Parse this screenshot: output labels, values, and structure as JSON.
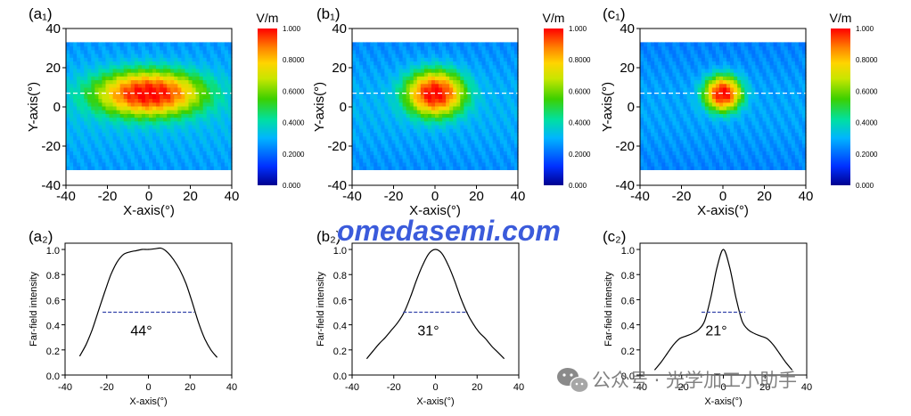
{
  "colormap": {
    "unit": "V/m",
    "stops": [
      "#00008f",
      "#0030ff",
      "#00b4ff",
      "#00e0a0",
      "#3cd000",
      "#c8e600",
      "#ffd400",
      "#ff8000",
      "#ff0000"
    ],
    "tick_labels": [
      "1.000",
      "0.8000",
      "0.6000",
      "0.4000",
      "0.2000",
      "0.000"
    ]
  },
  "heatmap_axes": {
    "xlabel": "X-axis(°)",
    "ylabel": "Y-axis(°)",
    "xticks": [
      "-40",
      "-20",
      "0",
      "20",
      "40"
    ],
    "yticks": [
      "40",
      "20",
      "0",
      "-20",
      "-40"
    ]
  },
  "profile_axes": {
    "xlabel": "X-axis(°)",
    "ylabel": "Far-field intensity",
    "xticks": [
      "-40",
      "-20",
      "0",
      "20",
      "40"
    ],
    "yticks": [
      "1.0",
      "0.8",
      "0.6",
      "0.4",
      "0.2",
      "0.0"
    ]
  },
  "panels": [
    {
      "heatmap_label": "(a₁)",
      "profile_label": "(a₂)",
      "angle_label": "44°"
    },
    {
      "heatmap_label": "(b₁)",
      "profile_label": "(b₂)",
      "angle_label": "31°"
    },
    {
      "heatmap_label": "(c₁)",
      "profile_label": "(c₂)",
      "angle_label": "21°"
    }
  ],
  "watermark": {
    "site": "omedasemi.com",
    "account": "公众号 · 光学加工小助手"
  },
  "chart_data": [
    {
      "type": "heatmap",
      "panel": "a1",
      "xlim": [
        -40,
        40
      ],
      "ylim": [
        -40,
        40
      ],
      "data_extent_y": [
        -32,
        33
      ],
      "dashed_line_y": 7,
      "colorbar_range": [
        0,
        1
      ],
      "hotspot": {
        "x": 0,
        "y": 7,
        "sigma_x": 20,
        "sigma_y": 9,
        "peak": 1.0
      },
      "background_level": 0.32
    },
    {
      "type": "heatmap",
      "panel": "b1",
      "xlim": [
        -40,
        40
      ],
      "ylim": [
        -40,
        40
      ],
      "data_extent_y": [
        -32,
        33
      ],
      "dashed_line_y": 7,
      "colorbar_range": [
        0,
        1
      ],
      "hotspot": {
        "x": 0,
        "y": 7,
        "sigma_x": 11,
        "sigma_y": 9,
        "peak": 1.0
      },
      "background_level": 0.3
    },
    {
      "type": "heatmap",
      "panel": "c1",
      "xlim": [
        -40,
        40
      ],
      "ylim": [
        -40,
        40
      ],
      "data_extent_y": [
        -32,
        33
      ],
      "dashed_line_y": 7,
      "colorbar_range": [
        0,
        1
      ],
      "hotspot": {
        "x": 0,
        "y": 7,
        "sigma_x": 7,
        "sigma_y": 7,
        "peak": 1.0
      },
      "background_level": 0.28
    },
    {
      "type": "line",
      "panel": "a2",
      "xlim": [
        -40,
        40
      ],
      "ylim": [
        0,
        1.05
      ],
      "x": [
        -33,
        -30,
        -27,
        -24,
        -21,
        -18,
        -15,
        -12,
        -9,
        -6,
        -3,
        0,
        3,
        6,
        9,
        12,
        15,
        18,
        21,
        24,
        27,
        30,
        33
      ],
      "y": [
        0.15,
        0.24,
        0.36,
        0.51,
        0.66,
        0.8,
        0.9,
        0.96,
        0.98,
        0.99,
        1.0,
        1.0,
        1.005,
        1.01,
        0.98,
        0.92,
        0.84,
        0.73,
        0.58,
        0.42,
        0.29,
        0.2,
        0.14
      ],
      "fwhm_level": 0.5,
      "fwhm_x": [
        -22,
        22
      ]
    },
    {
      "type": "line",
      "panel": "b2",
      "xlim": [
        -40,
        40
      ],
      "ylim": [
        0,
        1.05
      ],
      "x": [
        -33,
        -30,
        -27,
        -24,
        -21,
        -18,
        -15,
        -12,
        -9,
        -6,
        -3,
        0,
        3,
        6,
        9,
        12,
        15,
        18,
        21,
        24,
        27,
        30,
        33
      ],
      "y": [
        0.13,
        0.19,
        0.25,
        0.3,
        0.36,
        0.42,
        0.5,
        0.62,
        0.76,
        0.88,
        0.97,
        1.0,
        0.97,
        0.88,
        0.76,
        0.62,
        0.5,
        0.41,
        0.34,
        0.29,
        0.23,
        0.18,
        0.13
      ],
      "fwhm_level": 0.5,
      "fwhm_x": [
        -15.5,
        15.5
      ]
    },
    {
      "type": "line",
      "panel": "c2",
      "xlim": [
        -40,
        40
      ],
      "ylim": [
        0,
        1.05
      ],
      "x": [
        -33,
        -30,
        -27,
        -24,
        -21,
        -18,
        -15,
        -12,
        -9,
        -6,
        -3,
        0,
        3,
        6,
        9,
        12,
        15,
        18,
        21,
        24,
        27,
        30,
        33
      ],
      "y": [
        0.04,
        0.1,
        0.17,
        0.24,
        0.29,
        0.31,
        0.33,
        0.36,
        0.43,
        0.62,
        0.86,
        1.0,
        0.86,
        0.62,
        0.43,
        0.36,
        0.33,
        0.31,
        0.29,
        0.24,
        0.17,
        0.1,
        0.04
      ],
      "fwhm_level": 0.5,
      "fwhm_x": [
        -10.5,
        10.5
      ]
    }
  ]
}
